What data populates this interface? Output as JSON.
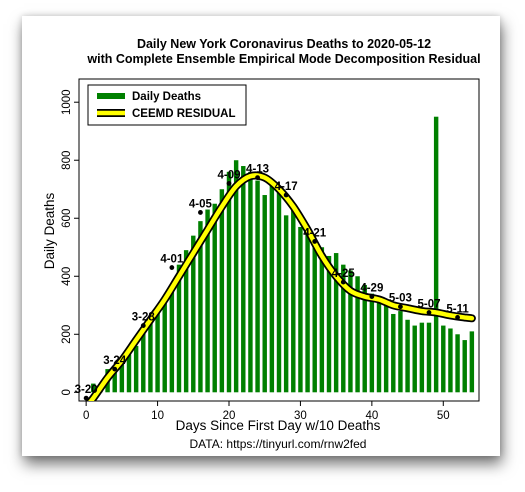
{
  "chart_data": {
    "type": "bar",
    "title": "Daily New York Coronavirus Deaths to 2020-05-12",
    "subtitle": "with Complete Ensemble Empirical Mode Decomposition Residual",
    "xlabel": "Days Since First Day w/10 Deaths",
    "ylabel": "Daily Deaths",
    "caption": "DATA: https://tinyurl.com/rnw2fed",
    "xlim": [
      -1,
      55
    ],
    "ylim": [
      -30,
      1080
    ],
    "xticks": [
      0,
      10,
      20,
      30,
      40,
      50
    ],
    "yticks": [
      0,
      200,
      400,
      600,
      800,
      1000
    ],
    "legend": {
      "position": "top-left",
      "entries": [
        {
          "label": "Daily Deaths",
          "color": "#008000"
        },
        {
          "label": "CEEMD RESIDUAL",
          "color": "#ffff00",
          "outline": "#000000"
        }
      ]
    },
    "series": [
      {
        "name": "Daily Deaths",
        "type": "bar",
        "color": "#008000",
        "x": [
          1,
          2,
          3,
          4,
          5,
          6,
          7,
          8,
          9,
          10,
          11,
          12,
          13,
          14,
          15,
          16,
          17,
          18,
          19,
          20,
          21,
          22,
          23,
          24,
          25,
          26,
          27,
          28,
          29,
          30,
          31,
          32,
          33,
          34,
          35,
          36,
          37,
          38,
          39,
          40,
          41,
          42,
          43,
          44,
          45,
          46,
          47,
          48,
          49,
          50,
          51,
          52,
          53,
          54
        ],
        "values": [
          30,
          20,
          80,
          90,
          100,
          130,
          160,
          210,
          250,
          280,
          320,
          350,
          440,
          490,
          540,
          590,
          630,
          650,
          700,
          760,
          800,
          780,
          760,
          730,
          680,
          720,
          690,
          610,
          640,
          570,
          560,
          530,
          500,
          470,
          480,
          440,
          420,
          400,
          370,
          340,
          330,
          310,
          270,
          280,
          250,
          230,
          240,
          240,
          950,
          230,
          220,
          200,
          180,
          210
        ]
      },
      {
        "name": "CEEMD RESIDUAL",
        "type": "line",
        "color": "#ffff00",
        "outline": "#000000",
        "x": [
          -1,
          1,
          3,
          5,
          7,
          9,
          11,
          13,
          15,
          17,
          19,
          21,
          23,
          25,
          27,
          29,
          31,
          33,
          35,
          37,
          39,
          41,
          43,
          45,
          47,
          49,
          51,
          53,
          54
        ],
        "values": [
          -80,
          -20,
          50,
          110,
          180,
          250,
          320,
          400,
          480,
          560,
          640,
          710,
          745,
          740,
          700,
          640,
          560,
          470,
          400,
          350,
          330,
          320,
          300,
          290,
          280,
          275,
          265,
          258,
          255
        ]
      }
    ],
    "annotations": [
      {
        "label": "3-20",
        "x": 0,
        "y": -20
      },
      {
        "label": "3-24",
        "x": 4,
        "y": 80
      },
      {
        "label": "3-28",
        "x": 8,
        "y": 230
      },
      {
        "label": "4-01",
        "x": 12,
        "y": 430
      },
      {
        "label": "4-05",
        "x": 16,
        "y": 620
      },
      {
        "label": "4-09",
        "x": 20,
        "y": 720
      },
      {
        "label": "4-13",
        "x": 24,
        "y": 740
      },
      {
        "label": "4-17",
        "x": 28,
        "y": 680
      },
      {
        "label": "4-21",
        "x": 32,
        "y": 520
      },
      {
        "label": "4-25",
        "x": 36,
        "y": 380
      },
      {
        "label": "4-29",
        "x": 40,
        "y": 330
      },
      {
        "label": "5-03",
        "x": 44,
        "y": 295
      },
      {
        "label": "5-07",
        "x": 48,
        "y": 275
      },
      {
        "label": "5-11",
        "x": 52,
        "y": 258
      }
    ]
  }
}
